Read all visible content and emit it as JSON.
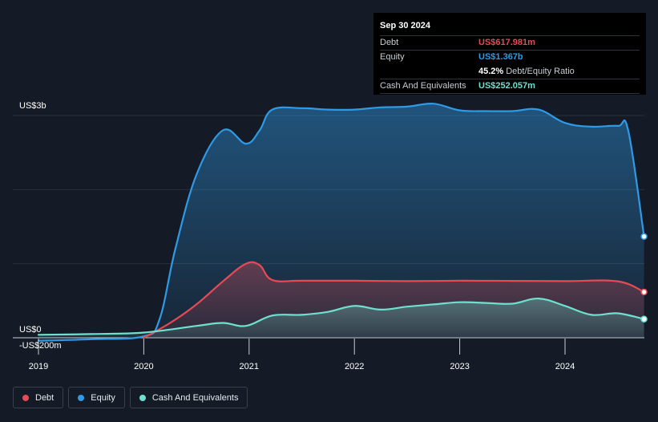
{
  "tooltip": {
    "date": "Sep 30 2024",
    "rows": {
      "debt": {
        "label": "Debt",
        "value": "US$617.981m"
      },
      "equity": {
        "label": "Equity",
        "value": "US$1.367b"
      },
      "ratio": {
        "label": "",
        "value": "45.2%",
        "suffix": "Debt/Equity Ratio"
      },
      "cash": {
        "label": "Cash And Equivalents",
        "value": "US$252.057m"
      }
    }
  },
  "legend": [
    {
      "key": "debt",
      "label": "Debt",
      "color": "#e64b55"
    },
    {
      "key": "equity",
      "label": "Equity",
      "color": "#2f9ae6"
    },
    {
      "key": "cash",
      "label": "Cash And Equivalents",
      "color": "#6fe0cf"
    }
  ],
  "chart_data": {
    "type": "area",
    "title": "",
    "xlabel": "",
    "ylabel": "",
    "y_tick_labels": [
      {
        "value": 3000,
        "label": "US$3b"
      },
      {
        "value": 0,
        "label": "US$0"
      },
      {
        "value": -200,
        "label": "-US$200m"
      }
    ],
    "ylim": [
      -200,
      3000
    ],
    "xlim": [
      2018.9,
      2024.75
    ],
    "x_ticks": [
      2019,
      2020,
      2021,
      2022,
      2023,
      2024
    ],
    "x_tick_labels": [
      "2019",
      "2020",
      "2021",
      "2022",
      "2023",
      "2024"
    ],
    "grid": true,
    "legend_position": "bottom-left",
    "series": [
      {
        "name": "Debt",
        "key": "debt",
        "color": "#e64b55",
        "points": [
          [
            2020.0,
            0
          ],
          [
            2020.25,
            200
          ],
          [
            2020.5,
            450
          ],
          [
            2020.75,
            760
          ],
          [
            2020.97,
            1000
          ],
          [
            2021.1,
            980
          ],
          [
            2021.22,
            780
          ],
          [
            2021.5,
            770
          ],
          [
            2022.0,
            770
          ],
          [
            2022.5,
            765
          ],
          [
            2023.0,
            770
          ],
          [
            2023.5,
            768
          ],
          [
            2024.0,
            765
          ],
          [
            2024.5,
            762
          ],
          [
            2024.75,
            618
          ]
        ]
      },
      {
        "name": "Equity",
        "key": "equity",
        "color": "#2f9ae6",
        "points": [
          [
            2019.0,
            -40
          ],
          [
            2019.5,
            -20
          ],
          [
            2020.0,
            20
          ],
          [
            2020.15,
            250
          ],
          [
            2020.3,
            1200
          ],
          [
            2020.5,
            2200
          ],
          [
            2020.75,
            2800
          ],
          [
            2020.97,
            2620
          ],
          [
            2021.1,
            2800
          ],
          [
            2021.22,
            3080
          ],
          [
            2021.5,
            3100
          ],
          [
            2021.75,
            3080
          ],
          [
            2022.0,
            3080
          ],
          [
            2022.25,
            3110
          ],
          [
            2022.5,
            3120
          ],
          [
            2022.75,
            3160
          ],
          [
            2023.0,
            3070
          ],
          [
            2023.25,
            3060
          ],
          [
            2023.5,
            3060
          ],
          [
            2023.75,
            3080
          ],
          [
            2024.0,
            2900
          ],
          [
            2024.25,
            2850
          ],
          [
            2024.5,
            2860
          ],
          [
            2024.6,
            2800
          ],
          [
            2024.75,
            1367
          ]
        ]
      },
      {
        "name": "Cash And Equivalents",
        "key": "cash",
        "color": "#6fe0cf",
        "points": [
          [
            2019.0,
            40
          ],
          [
            2019.5,
            50
          ],
          [
            2020.0,
            70
          ],
          [
            2020.5,
            160
          ],
          [
            2020.75,
            200
          ],
          [
            2020.97,
            160
          ],
          [
            2021.22,
            300
          ],
          [
            2021.5,
            310
          ],
          [
            2021.75,
            350
          ],
          [
            2022.0,
            430
          ],
          [
            2022.25,
            380
          ],
          [
            2022.5,
            420
          ],
          [
            2022.75,
            450
          ],
          [
            2023.0,
            480
          ],
          [
            2023.25,
            470
          ],
          [
            2023.5,
            460
          ],
          [
            2023.75,
            530
          ],
          [
            2024.0,
            430
          ],
          [
            2024.25,
            310
          ],
          [
            2024.5,
            330
          ],
          [
            2024.75,
            252
          ]
        ]
      }
    ]
  }
}
